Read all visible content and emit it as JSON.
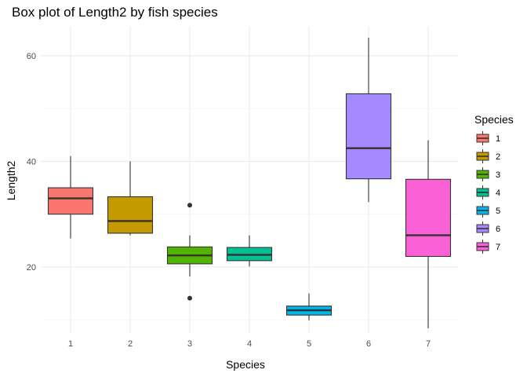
{
  "chart_data": {
    "type": "boxplot",
    "title": "Box plot of Length2 by fish species",
    "xlabel": "Species",
    "ylabel": "Length2",
    "categories": [
      "1",
      "2",
      "3",
      "4",
      "5",
      "6",
      "7"
    ],
    "ylim": [
      7.5,
      65.5
    ],
    "yticks": [
      20,
      40,
      60
    ],
    "grid": true,
    "legend": {
      "title": "Species",
      "position": "right"
    },
    "boxes": [
      {
        "category": "1",
        "color": "#F8766D",
        "min": 25.4,
        "q1": 30.0,
        "median": 33.0,
        "q3": 35.0,
        "max": 41.0,
        "outliers": []
      },
      {
        "category": "2",
        "color": "#C49A00",
        "min": 26.0,
        "q1": 26.4,
        "median": 28.7,
        "q3": 33.3,
        "max": 40.0,
        "outliers": []
      },
      {
        "category": "3",
        "color": "#53B400",
        "min": 18.2,
        "q1": 20.6,
        "median": 22.2,
        "q3": 23.8,
        "max": 26.0,
        "outliers": [
          14.1,
          31.7
        ]
      },
      {
        "category": "4",
        "color": "#00C094",
        "min": 20.1,
        "q1": 21.2,
        "median": 22.3,
        "q3": 23.7,
        "max": 26.0,
        "outliers": []
      },
      {
        "category": "5",
        "color": "#00B6EB",
        "min": 9.9,
        "q1": 10.9,
        "median": 11.8,
        "q3": 12.6,
        "max": 15.0,
        "outliers": []
      },
      {
        "category": "6",
        "color": "#A58AFF",
        "min": 32.3,
        "q1": 36.7,
        "median": 42.5,
        "q3": 52.8,
        "max": 63.4,
        "outliers": []
      },
      {
        "category": "7",
        "color": "#FB61D7",
        "min": 8.4,
        "q1": 22.0,
        "median": 26.0,
        "q3": 36.6,
        "max": 44.0,
        "outliers": []
      }
    ]
  }
}
